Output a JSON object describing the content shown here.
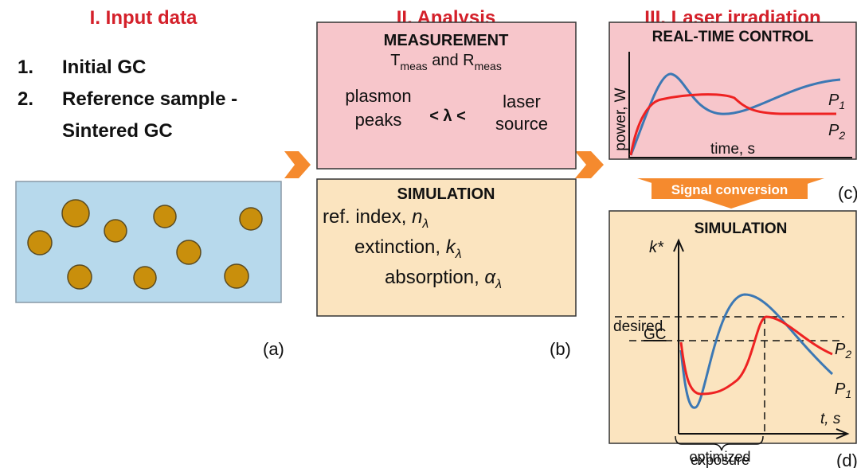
{
  "headers": [
    "I. Input data",
    "II. Analysis",
    "III. Laser irradiation"
  ],
  "input_list": [
    {
      "num": "1.",
      "text": "Initial GC"
    },
    {
      "num": "2.",
      "text": "Reference sample -"
    },
    {
      "num": "",
      "text": "Sintered GC"
    }
  ],
  "panel_labels": [
    "(a)",
    "(b)",
    "(c)",
    "(d)"
  ],
  "measurement": {
    "title": "MEASUREMENT",
    "t": "T",
    "t_sub": "meas",
    "and_r": " and R",
    "r_sub": "meas",
    "plasmon": "plasmon",
    "peaks": "peaks",
    "lambda": "< λ <",
    "laser": "laser",
    "source": "source"
  },
  "simulation_b": {
    "title": "SIMULATION",
    "ref": "ref. index, ",
    "n": "n",
    "ext": "extinction, ",
    "k": "k",
    "abs": "absorption, ",
    "alpha": "α",
    "sub": "λ"
  },
  "control": {
    "title": "REAL-TIME CONTROL",
    "ylabel": "power, W",
    "xlabel": "time, s",
    "p1": "P",
    "p1_sub": "1",
    "p2": "P",
    "p2_sub": "2"
  },
  "signal": "Signal conversion",
  "simulation_d": {
    "title": "SIMULATION",
    "ylabel": "k*",
    "xlabel": "t, s",
    "desired": "desired",
    "gc": "GC",
    "p2": "P",
    "p2_sub": "2",
    "p1": "P",
    "p1_sub": "1",
    "opt1": "optimized",
    "opt2": "exposure"
  }
}
